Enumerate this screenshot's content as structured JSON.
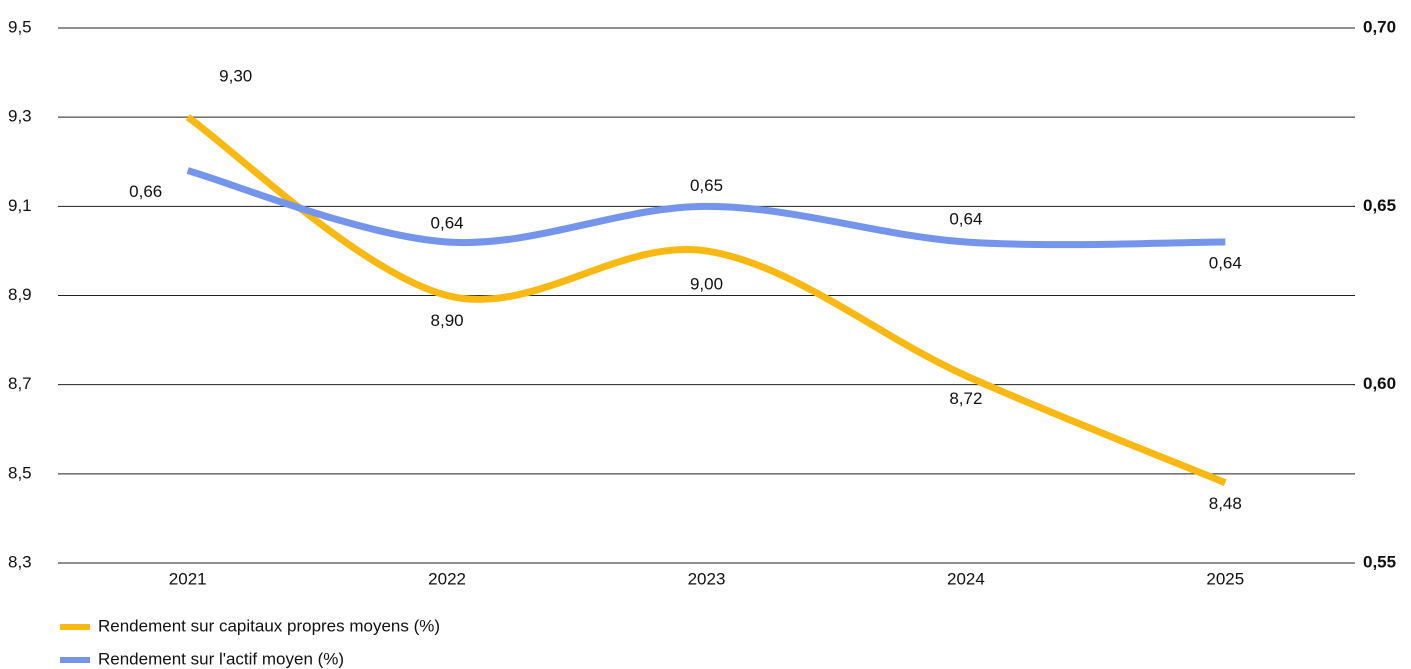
{
  "chart_data": {
    "type": "line",
    "categories": [
      "2021",
      "2022",
      "2023",
      "2024",
      "2025"
    ],
    "series": [
      {
        "name": "Rendement sur capitaux propres moyens (%)",
        "color": "#f9b912",
        "axis": "y",
        "values": [
          9.3,
          8.9,
          9.0,
          8.72,
          8.48
        ],
        "value_labels": [
          "9,30",
          "8,90",
          "9,00",
          "8,72",
          "8,48"
        ]
      },
      {
        "name": "Rendement sur l'actif moyen (%)",
        "color": "#7595ec",
        "axis": "y2",
        "values": [
          0.66,
          0.64,
          0.65,
          0.64,
          0.64
        ],
        "value_labels": [
          "0,66",
          "0,64",
          "0,65",
          "0,64",
          "0,64"
        ]
      }
    ],
    "ylim": [
      8.3,
      9.5
    ],
    "yticks": [
      {
        "value": 8.3,
        "label": "8,3"
      },
      {
        "value": 8.5,
        "label": "8,5"
      },
      {
        "value": 8.7,
        "label": "8,7"
      },
      {
        "value": 8.9,
        "label": "8,9"
      },
      {
        "value": 9.1,
        "label": "9,1"
      },
      {
        "value": 9.3,
        "label": "9,3"
      },
      {
        "value": 9.5,
        "label": "9,5"
      }
    ],
    "y2lim": [
      0.55,
      0.7
    ],
    "y2ticks": [
      {
        "value": 0.55,
        "label": "0,55"
      },
      {
        "value": 0.6,
        "label": "0,60"
      },
      {
        "value": 0.65,
        "label": "0,65"
      },
      {
        "value": 0.7,
        "label": "0,70"
      }
    ],
    "grid": true,
    "legend": "bottom-left"
  }
}
